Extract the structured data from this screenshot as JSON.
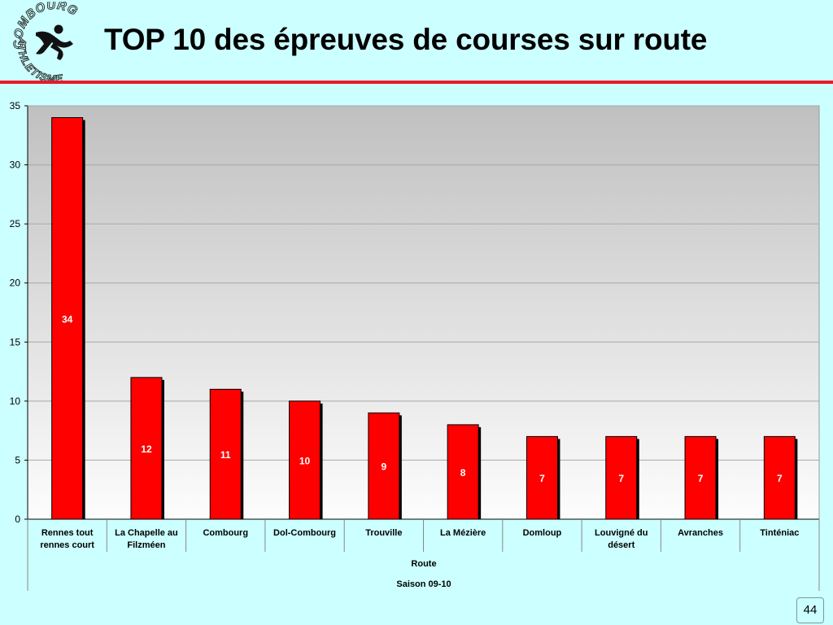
{
  "title": "TOP 10 des épreuves de courses sur route",
  "logo": {
    "text_top": "COMBOURG",
    "text_bottom": "ATHLETISME"
  },
  "page_number": "44",
  "colors": {
    "bar": "#ff0000",
    "rule": "#e8192c",
    "background": "#ccffff"
  },
  "chart_data": {
    "type": "bar",
    "title": "TOP 10 des épreuves de courses sur route",
    "categories": [
      "Rennes tout rennes court",
      "La Chapelle au Filzméen",
      "Combourg",
      "Dol-Combourg",
      "Trouville",
      "La Mézière",
      "Domloup",
      "Louvigné du désert",
      "Avranches",
      "Tinténiac"
    ],
    "category_lines": [
      [
        "Rennes tout",
        "rennes court"
      ],
      [
        "La Chapelle au",
        "Filzméen"
      ],
      [
        "Combourg"
      ],
      [
        "Dol-Combourg"
      ],
      [
        "Trouville"
      ],
      [
        "La Mézière"
      ],
      [
        "Domloup"
      ],
      [
        "Louvigné du",
        "désert"
      ],
      [
        "Avranches"
      ],
      [
        "Tinténiac"
      ]
    ],
    "values": [
      34,
      12,
      11,
      10,
      9,
      8,
      7,
      7,
      7,
      7
    ],
    "group_label": "Route",
    "season_label": "Saison 09-10",
    "ylim": [
      0,
      35
    ],
    "yticks": [
      0,
      5,
      10,
      15,
      20,
      25,
      30,
      35
    ],
    "grid": true,
    "data_labels": true
  }
}
